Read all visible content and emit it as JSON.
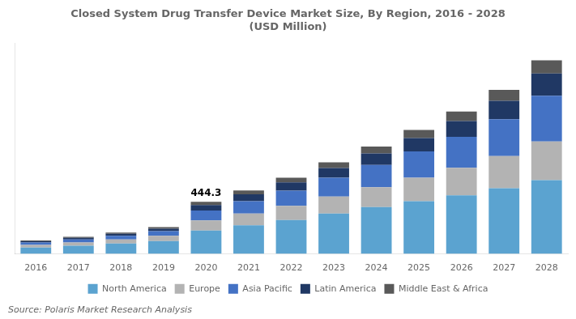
{
  "chart_data": {
    "type": "bar",
    "title": "Closed System Drug Transfer Device Market Size, By Region, 2016 - 2028\n(USD Million)",
    "source": "Source: Polaris Market Research Analysis",
    "categories": [
      "2016",
      "2017",
      "2018",
      "2019",
      "2020",
      "2021",
      "2022",
      "2023",
      "2024",
      "2025",
      "2026",
      "2027",
      "2028"
    ],
    "series": [
      {
        "name": "North America",
        "color": "#5ba3d0",
        "values": [
          55,
          70,
          88,
          110,
          200,
          245,
          290,
          345,
          400,
          450,
          500,
          560,
          630
        ]
      },
      {
        "name": "Europe",
        "color": "#b3b3b3",
        "values": [
          22,
          28,
          35,
          45,
          85,
          100,
          120,
          145,
          170,
          200,
          235,
          275,
          330
        ]
      },
      {
        "name": "Asia Pacific",
        "color": "#4472c4",
        "values": [
          20,
          26,
          32,
          40,
          85,
          105,
          130,
          160,
          190,
          225,
          265,
          315,
          390
        ]
      },
      {
        "name": "Latin America",
        "color": "#203864",
        "values": [
          10,
          13,
          16,
          20,
          47,
          58,
          70,
          83,
          98,
          115,
          135,
          157,
          190
        ]
      },
      {
        "name": "Middle East & Africa",
        "color": "#595959",
        "values": [
          7,
          9,
          11,
          13,
          27,
          33,
          40,
          48,
          58,
          68,
          80,
          94,
          113
        ]
      }
    ],
    "annotations": [
      {
        "x": "2020",
        "text": "444.3"
      }
    ],
    "stacked": true,
    "ylim": [
      0,
      1800
    ],
    "tick_labels": "x",
    "grid": false,
    "legend": "bottom"
  }
}
